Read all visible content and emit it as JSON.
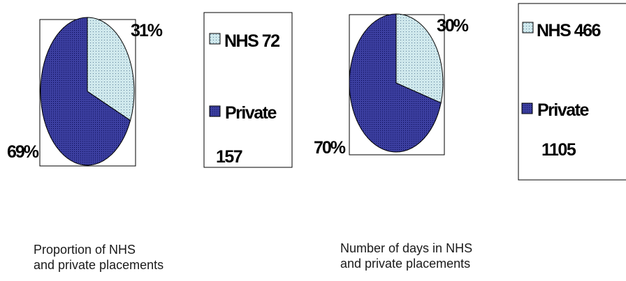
{
  "chart_data": [
    {
      "type": "pie",
      "categories": [
        "NHS",
        "Private"
      ],
      "values": [
        72,
        157
      ],
      "percent_labels": [
        "31%",
        "69%"
      ],
      "legend": [
        {
          "category": "NHS",
          "value": "72"
        },
        {
          "category": "Private",
          "value": "157"
        }
      ],
      "caption": [
        "Proportion of NHS",
        "and private placements"
      ]
    },
    {
      "type": "pie",
      "categories": [
        "NHS",
        "Private"
      ],
      "values": [
        466,
        1105
      ],
      "percent_labels": [
        "30%",
        "70%"
      ],
      "legend": [
        {
          "category": "NHS",
          "value": "466"
        },
        {
          "category": "Private",
          "value": "1105"
        }
      ],
      "caption": [
        "Number of days in NHS",
        "and private placements"
      ]
    }
  ],
  "colors": {
    "nhs": "#cfe8ec",
    "private": "#3c3fa0",
    "nhs_dots": "#5c7f99",
    "private_dots": "#0a0c55",
    "frame": "#000000"
  }
}
